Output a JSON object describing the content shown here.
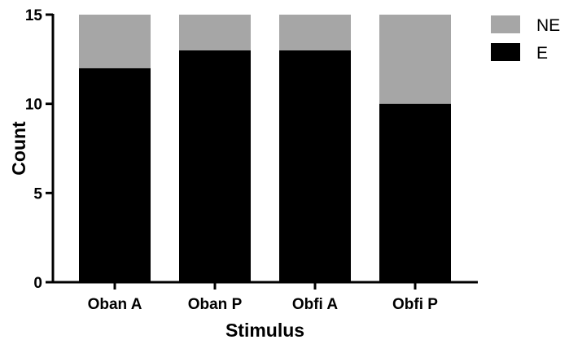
{
  "chart_data": {
    "type": "bar",
    "stacked": true,
    "categories": [
      "Oban A",
      "Oban P",
      "Obfi A",
      "Obfi P"
    ],
    "series": [
      {
        "name": "E",
        "values": [
          12,
          13,
          13,
          10
        ],
        "color": "#000000"
      },
      {
        "name": "NE",
        "values": [
          3,
          2,
          2,
          5
        ],
        "color": "#a6a6a6"
      }
    ],
    "xlabel": "Stimulus",
    "ylabel": "Count",
    "ylim": [
      0,
      15
    ],
    "yticks": [
      0,
      5,
      10,
      15
    ],
    "grid": false,
    "legend": {
      "position": "top-right",
      "entries": [
        "NE",
        "E"
      ]
    }
  }
}
